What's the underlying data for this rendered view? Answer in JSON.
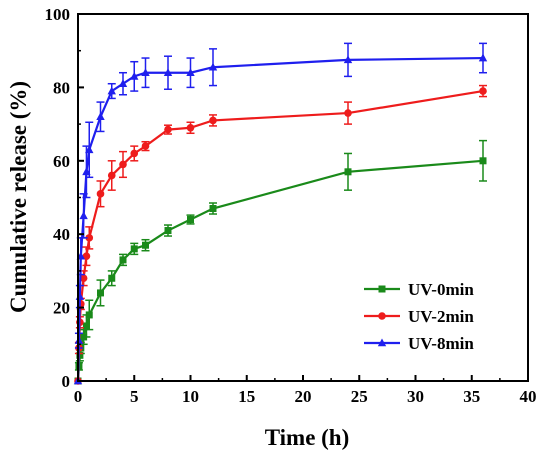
{
  "chart_data": {
    "type": "line",
    "title": "",
    "xlabel": "Time (h)",
    "ylabel": "Cumulative release (%)",
    "xlim": [
      0,
      40
    ],
    "ylim": [
      0,
      100
    ],
    "x_ticks": [
      0,
      5,
      10,
      15,
      20,
      25,
      30,
      35,
      40
    ],
    "y_ticks": [
      0,
      20,
      40,
      60,
      80,
      100
    ],
    "grid": false,
    "legend_position": "bottom-right",
    "series": [
      {
        "name": "UV-0min",
        "color": "#1a8a1a",
        "marker": "square",
        "x": [
          0,
          0.083,
          0.167,
          0.25,
          0.5,
          0.75,
          1,
          2,
          3,
          4,
          5,
          6,
          8,
          10,
          12,
          24,
          36
        ],
        "y": [
          0,
          4,
          7,
          9,
          12,
          15,
          18,
          24,
          28,
          33,
          36,
          37,
          41,
          44,
          47,
          57,
          60
        ],
        "err": [
          0,
          1,
          1.5,
          1.5,
          2,
          3,
          4,
          3.5,
          2,
          1.5,
          1.5,
          1.5,
          1.5,
          1.2,
          1.5,
          5,
          5.5
        ]
      },
      {
        "name": "UV-2min",
        "color": "#ee1c1c",
        "marker": "circle",
        "x": [
          0,
          0.083,
          0.167,
          0.25,
          0.5,
          0.75,
          1,
          2,
          3,
          4,
          5,
          6,
          8,
          10,
          12,
          24,
          36
        ],
        "y": [
          0,
          9,
          16,
          21,
          28,
          34,
          39,
          51,
          56,
          59,
          62,
          64,
          68.5,
          69,
          71,
          73,
          79
        ],
        "err": [
          0,
          1.5,
          1.5,
          1.5,
          2,
          2.5,
          3,
          3.5,
          4,
          3.5,
          2,
          1.2,
          1.2,
          1.5,
          1.5,
          3,
          1.5
        ]
      },
      {
        "name": "UV-8min",
        "color": "#1f1fee",
        "marker": "triangle",
        "x": [
          0,
          0.083,
          0.167,
          0.25,
          0.5,
          0.75,
          1,
          2,
          3,
          4,
          5,
          6,
          8,
          10,
          12,
          24,
          36
        ],
        "y": [
          0,
          11,
          23,
          34,
          45,
          57,
          63,
          72,
          79,
          81,
          83,
          84,
          84,
          84,
          85.5,
          87.5,
          88
        ],
        "err": [
          0,
          2,
          3,
          5,
          6,
          7,
          7.5,
          4,
          2,
          3,
          4,
          4,
          4.5,
          4,
          5,
          4.5,
          4
        ]
      }
    ]
  }
}
